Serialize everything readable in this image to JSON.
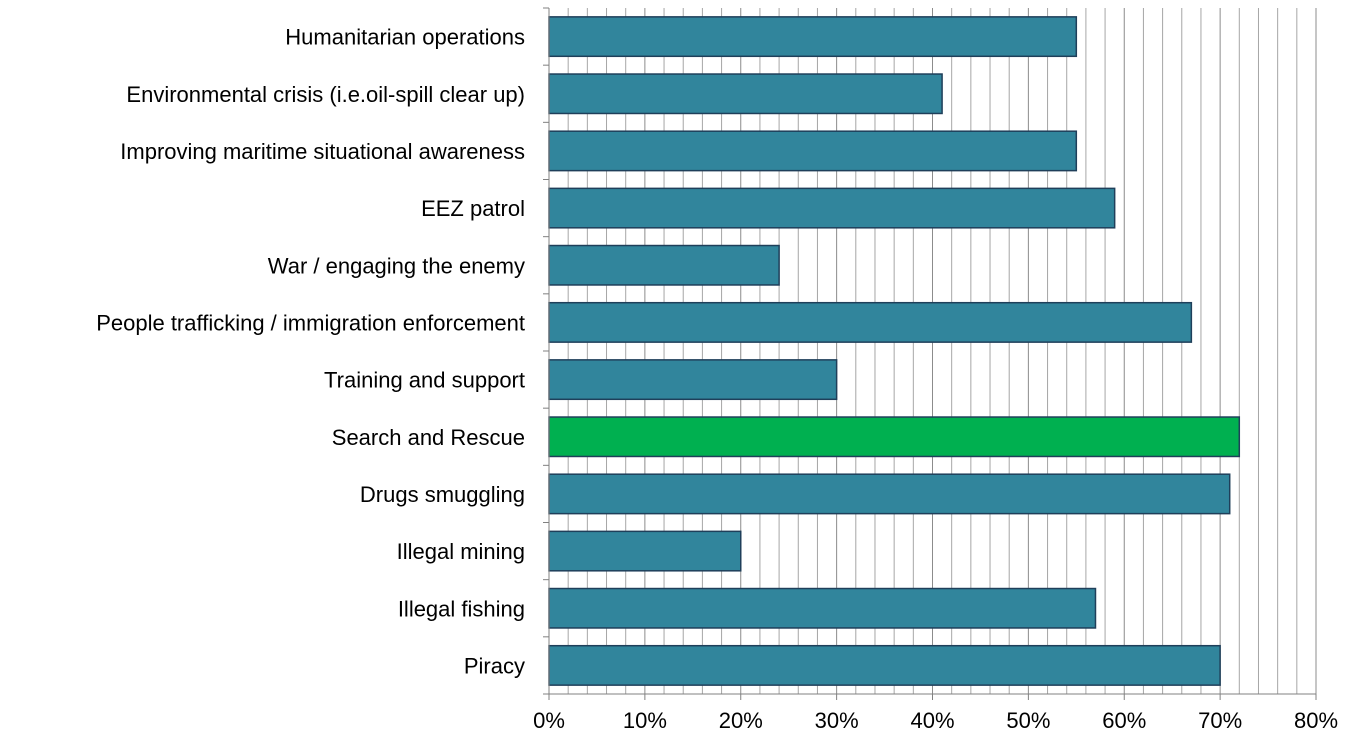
{
  "chart_data": {
    "type": "bar",
    "orientation": "horizontal",
    "categories": [
      "Humanitarian operations",
      "Environmental crisis (i.e.oil-spill clear up)",
      "Improving maritime situational awareness",
      "EEZ patrol",
      "War / engaging the enemy",
      "People trafficking / immigration enforcement",
      "Training and support",
      "Search and Rescue",
      "Drugs smuggling",
      "Illegal mining",
      "Illegal fishing",
      "Piracy"
    ],
    "values": [
      55,
      41,
      55,
      59,
      24,
      67,
      30,
      72,
      71,
      20,
      57,
      70
    ],
    "highlight_category": "Search and Rescue",
    "xlim": [
      0,
      80
    ],
    "x_ticks": [
      "0%",
      "10%",
      "20%",
      "30%",
      "40%",
      "50%",
      "60%",
      "70%",
      "80%"
    ],
    "minor_grid_step": 2,
    "grid": true,
    "legend": "none",
    "colors": {
      "bar": "#31859c",
      "highlight": "#00b050",
      "bar_border": "#1f3f5a",
      "grid": "#a6a6a6",
      "axis": "#808080"
    }
  }
}
